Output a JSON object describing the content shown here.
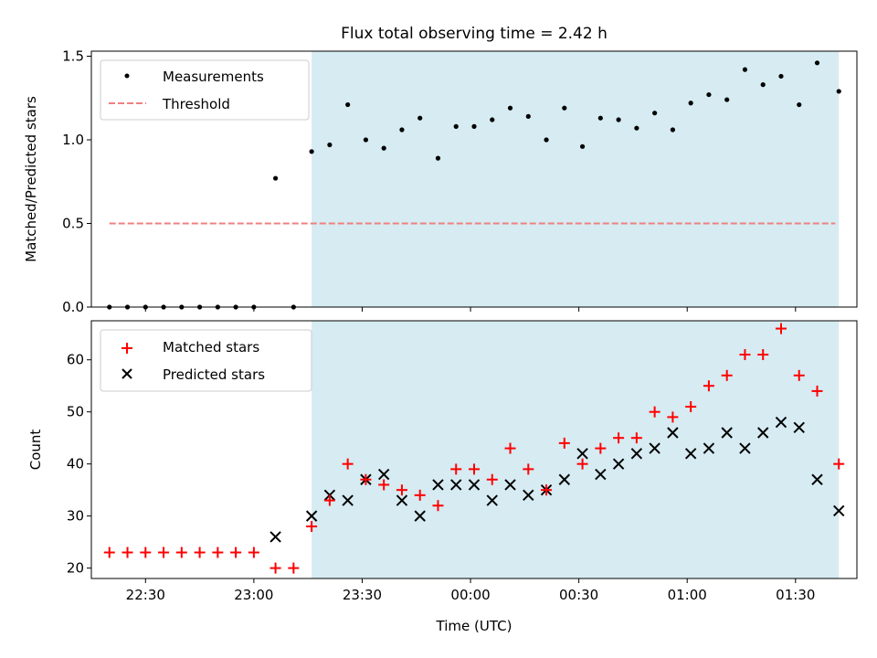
{
  "chart_data": [
    {
      "type": "scatter",
      "title": "Flux total observing time = 2.42 h",
      "ylabel": "Matched/Predicted stars",
      "xlabel": "",
      "xlim": [
        "22:15",
        "01:47"
      ],
      "ylim": [
        0,
        1.53
      ],
      "yticks": [
        0.0,
        0.5,
        1.0,
        1.5
      ],
      "ytick_labels": [
        "0.0",
        "0.5",
        "1.0",
        "1.5"
      ],
      "xticks": [
        "22:30",
        "23:00",
        "23:30",
        "00:00",
        "00:30",
        "01:00",
        "01:30"
      ],
      "xtick_labels_shown": false,
      "legend_position": "upper-left",
      "highlight_span": {
        "from": "23:16",
        "to": "01:42",
        "color": "#add8e6"
      },
      "x": [
        "22:20",
        "22:25",
        "22:30",
        "22:35",
        "22:40",
        "22:45",
        "22:50",
        "22:55",
        "23:00",
        "23:06",
        "23:11",
        "23:16",
        "23:21",
        "23:26",
        "23:31",
        "23:36",
        "23:41",
        "23:46",
        "23:51",
        "23:56",
        "00:01",
        "00:06",
        "00:11",
        "00:16",
        "00:21",
        "00:26",
        "00:31",
        "00:36",
        "00:41",
        "00:46",
        "00:51",
        "00:56",
        "01:01",
        "01:06",
        "01:11",
        "01:16",
        "01:21",
        "01:26",
        "01:31",
        "01:36",
        "01:42"
      ],
      "series": [
        {
          "name": "Measurements",
          "style": "dot",
          "color": "#000000",
          "y": [
            0,
            0,
            0,
            0,
            0,
            0,
            0,
            0,
            0,
            0.77,
            0,
            0.93,
            0.97,
            1.21,
            1.0,
            0.95,
            1.06,
            1.13,
            0.89,
            1.08,
            1.08,
            1.12,
            1.19,
            1.14,
            1.0,
            1.19,
            0.96,
            1.13,
            1.12,
            1.07,
            1.16,
            1.06,
            1.22,
            1.27,
            1.24,
            1.42,
            1.33,
            1.38,
            1.21,
            1.46,
            1.29
          ]
        },
        {
          "name": "Threshold",
          "style": "dashed-line",
          "color": "#f08080",
          "x": [
            "22:20",
            "01:41"
          ],
          "y": [
            0.5,
            0.5
          ]
        }
      ]
    },
    {
      "type": "scatter",
      "title": "",
      "ylabel": "Count",
      "xlabel": "Time (UTC)",
      "xlim": [
        "22:15",
        "01:47"
      ],
      "ylim": [
        18,
        67.5
      ],
      "yticks": [
        20,
        30,
        40,
        50,
        60
      ],
      "ytick_labels": [
        "20",
        "30",
        "40",
        "50",
        "60"
      ],
      "xticks": [
        "22:30",
        "23:00",
        "23:30",
        "00:00",
        "00:30",
        "01:00",
        "01:30"
      ],
      "xtick_labels": [
        "22:30",
        "23:00",
        "23:30",
        "00:00",
        "00:30",
        "01:00",
        "01:30"
      ],
      "legend_position": "upper-left",
      "highlight_span": {
        "from": "23:16",
        "to": "01:42",
        "color": "#add8e6"
      },
      "series": [
        {
          "name": "Matched stars",
          "marker": "plus",
          "color": "#ff0000",
          "x": [
            "22:20",
            "22:25",
            "22:30",
            "22:35",
            "22:40",
            "22:45",
            "22:50",
            "22:55",
            "23:00",
            "23:06",
            "23:11",
            "23:16",
            "23:21",
            "23:26",
            "23:31",
            "23:36",
            "23:41",
            "23:46",
            "23:51",
            "23:56",
            "00:01",
            "00:06",
            "00:11",
            "00:16",
            "00:21",
            "00:26",
            "00:31",
            "00:36",
            "00:41",
            "00:46",
            "00:51",
            "00:56",
            "01:01",
            "01:06",
            "01:11",
            "01:16",
            "01:21",
            "01:26",
            "01:31",
            "01:36",
            "01:42"
          ],
          "y": [
            23,
            23,
            23,
            23,
            23,
            23,
            23,
            23,
            23,
            20,
            20,
            28,
            33,
            40,
            37,
            36,
            35,
            34,
            32,
            39,
            39,
            37,
            43,
            39,
            35,
            44,
            40,
            43,
            45,
            45,
            50,
            49,
            51,
            55,
            57,
            61,
            61,
            66,
            57,
            54,
            40
          ]
        },
        {
          "name": "Predicted stars",
          "marker": "x",
          "color": "#000000",
          "x": [
            "23:06",
            "23:16",
            "23:21",
            "23:26",
            "23:31",
            "23:36",
            "23:41",
            "23:46",
            "23:51",
            "23:56",
            "00:01",
            "00:06",
            "00:11",
            "00:16",
            "00:21",
            "00:26",
            "00:31",
            "00:36",
            "00:41",
            "00:46",
            "00:51",
            "00:56",
            "01:01",
            "01:06",
            "01:11",
            "01:16",
            "01:21",
            "01:26",
            "01:31",
            "01:36",
            "01:42"
          ],
          "y": [
            26,
            30,
            34,
            33,
            37,
            38,
            33,
            30,
            36,
            36,
            36,
            33,
            36,
            34,
            35,
            37,
            42,
            38,
            40,
            42,
            43,
            46,
            42,
            43,
            46,
            43,
            46,
            48,
            47,
            37,
            31
          ]
        }
      ]
    }
  ]
}
